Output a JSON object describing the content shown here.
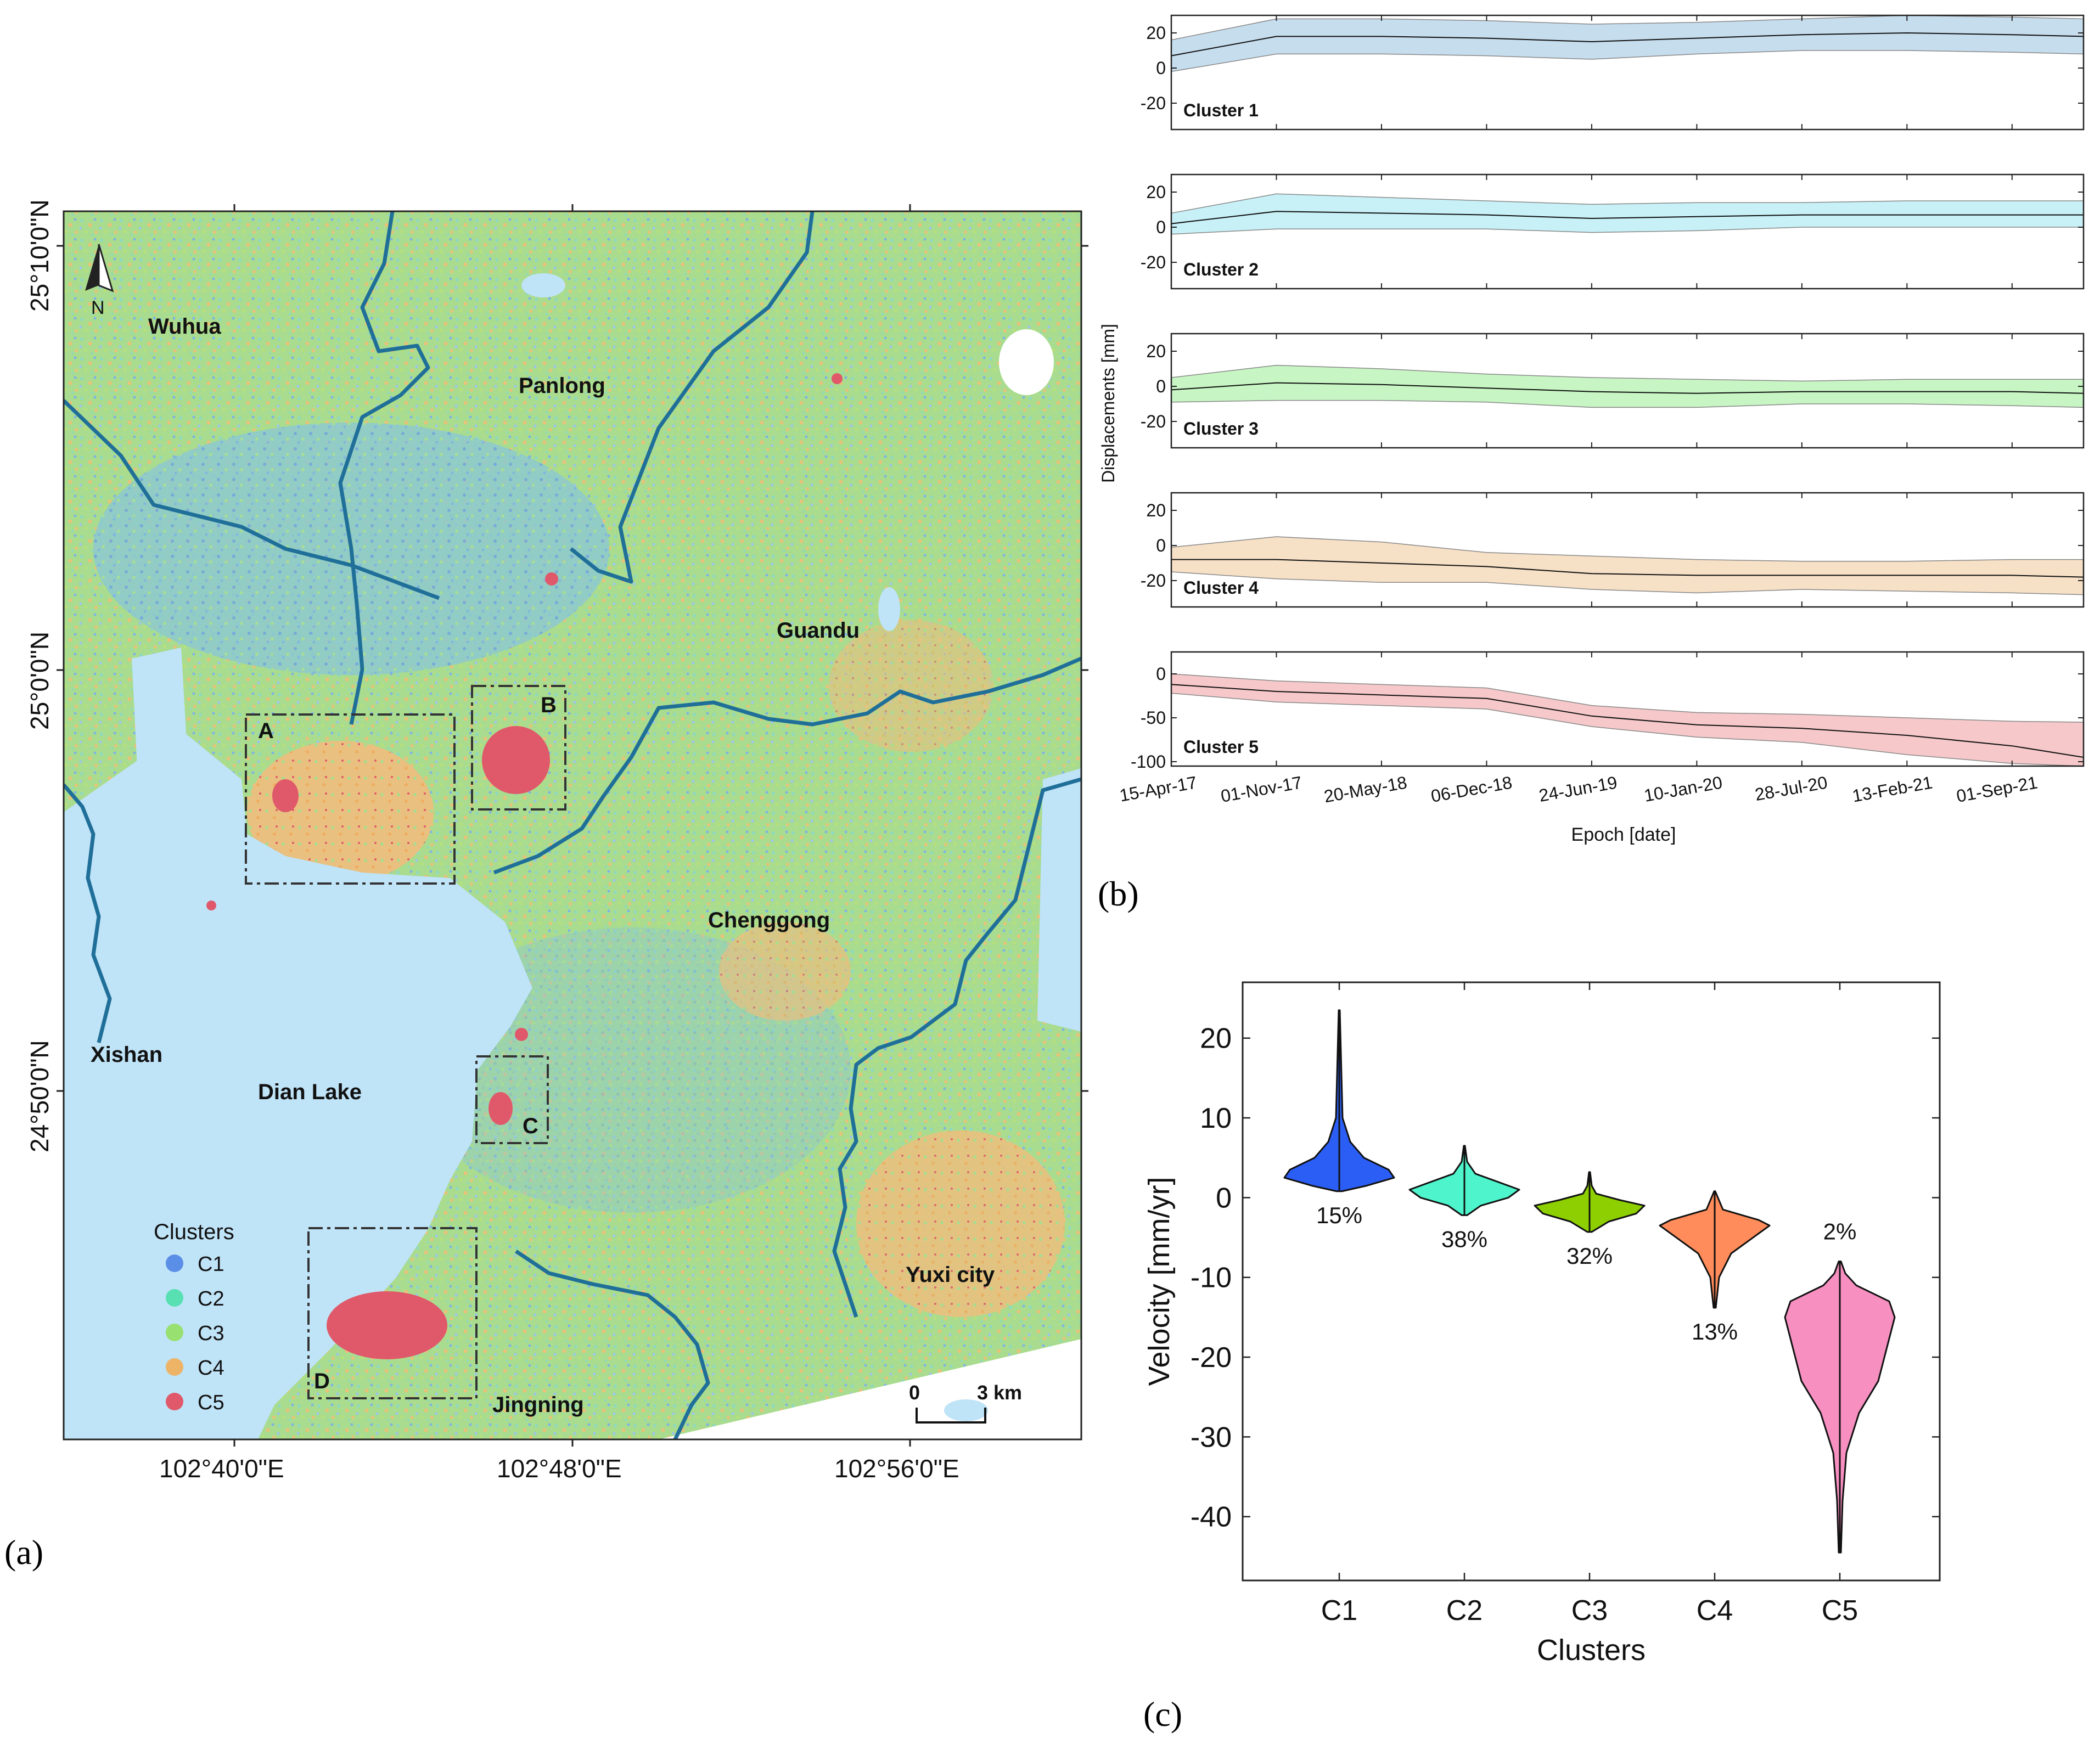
{
  "panels": {
    "a": "(a)",
    "b": "(b)",
    "c": "(c)"
  },
  "map": {
    "places": [
      {
        "id": "wuhua",
        "name": "Wuhua"
      },
      {
        "id": "panlong",
        "name": "Panlong"
      },
      {
        "id": "guandu",
        "name": "Guandu"
      },
      {
        "id": "chenggong",
        "name": "Chenggong"
      },
      {
        "id": "xishan",
        "name": "Xishan"
      },
      {
        "id": "dianlake",
        "name": "Dian Lake"
      },
      {
        "id": "yuxi",
        "name": "Yuxi city"
      },
      {
        "id": "jingning",
        "name": "Jingning"
      }
    ],
    "boxes": [
      "A",
      "B",
      "C",
      "D"
    ],
    "lat_labels": [
      "25°10'0\"N",
      "25°0'0\"N",
      "24°50'0\"N"
    ],
    "lon_labels": [
      "102°40'0\"E",
      "102°48'0\"E",
      "102°56'0\"E"
    ],
    "north_label": "N",
    "scalebar": {
      "start": "0",
      "end": "3 km"
    },
    "legend": {
      "title": "Clusters",
      "items": [
        {
          "label": "C1",
          "color": "#5b8ee6"
        },
        {
          "label": "C2",
          "color": "#58e0b3"
        },
        {
          "label": "C3",
          "color": "#98e070"
        },
        {
          "label": "C4",
          "color": "#edb467"
        },
        {
          "label": "C5",
          "color": "#e0596a"
        }
      ]
    },
    "colors": {
      "lake": "#bfe3f7",
      "river": "#1f6f99",
      "land": "#a9dc8e"
    }
  },
  "chart_data": [
    {
      "id": "timeseries",
      "type": "area",
      "xlabel": "Epoch [date]",
      "ylabel": "Displacements [mm]",
      "x_ticks": [
        "15-Apr-17",
        "01-Nov-17",
        "20-May-18",
        "06-Dec-18",
        "24-Jun-19",
        "10-Jan-20",
        "28-Jul-20",
        "13-Feb-21",
        "01-Sep-21"
      ],
      "x": [
        "2017-04-15",
        "2017-11-01",
        "2018-05-20",
        "2018-12-06",
        "2019-06-24",
        "2020-01-10",
        "2020-07-28",
        "2021-02-13",
        "2021-09-01",
        "2022-01-15"
      ],
      "series": [
        {
          "name": "Cluster 1",
          "color": "#c6ddee",
          "ylim": [
            -35,
            30
          ],
          "yticks": [
            20,
            0,
            -20
          ],
          "mean": [
            7,
            18,
            18,
            17,
            15,
            17,
            19,
            20,
            19,
            18
          ],
          "upper": [
            16,
            28,
            28,
            27,
            25,
            26,
            28,
            30,
            29,
            28
          ],
          "lower": [
            -2,
            8,
            8,
            7,
            5,
            8,
            10,
            10,
            9,
            8
          ]
        },
        {
          "name": "Cluster 2",
          "color": "#c7f1f7",
          "ylim": [
            -35,
            30
          ],
          "yticks": [
            20,
            0,
            -20
          ],
          "mean": [
            2,
            9,
            8,
            7,
            5,
            6,
            7,
            7,
            7,
            7
          ],
          "upper": [
            8,
            19,
            17,
            15,
            13,
            14,
            14,
            15,
            15,
            15
          ],
          "lower": [
            -4,
            -1,
            -1,
            -1,
            -3,
            -2,
            0,
            0,
            0,
            0
          ]
        },
        {
          "name": "Cluster 3",
          "color": "#c7f5c3",
          "ylim": [
            -35,
            30
          ],
          "yticks": [
            20,
            0,
            -20
          ],
          "mean": [
            -2,
            2,
            1,
            -1,
            -3,
            -4,
            -3,
            -3,
            -3,
            -4
          ],
          "upper": [
            5,
            12,
            10,
            7,
            5,
            4,
            3,
            4,
            4,
            4
          ],
          "lower": [
            -9,
            -8,
            -8,
            -9,
            -12,
            -12,
            -10,
            -10,
            -11,
            -12
          ]
        },
        {
          "name": "Cluster 4",
          "color": "#f6e0c6",
          "ylim": [
            -35,
            30
          ],
          "yticks": [
            20,
            0,
            -20
          ],
          "mean": [
            -8,
            -8,
            -10,
            -12,
            -16,
            -17,
            -17,
            -17,
            -17,
            -18
          ],
          "upper": [
            -1,
            5,
            2,
            -4,
            -6,
            -8,
            -9,
            -9,
            -8,
            -8
          ],
          "lower": [
            -15,
            -19,
            -21,
            -21,
            -25,
            -27,
            -25,
            -26,
            -27,
            -28
          ]
        },
        {
          "name": "Cluster 5",
          "color": "#f6c8c9",
          "ylim": [
            -105,
            25
          ],
          "yticks": [
            0,
            -50,
            -100
          ],
          "mean": [
            -12,
            -20,
            -24,
            -28,
            -48,
            -58,
            -62,
            -70,
            -82,
            -95
          ],
          "upper": [
            0,
            -8,
            -12,
            -16,
            -36,
            -44,
            -46,
            -50,
            -54,
            -55
          ],
          "lower": [
            -22,
            -32,
            -36,
            -40,
            -60,
            -72,
            -78,
            -92,
            -102,
            -105
          ]
        }
      ]
    },
    {
      "id": "violin",
      "type": "violin",
      "title": "",
      "xlabel": "Clusters",
      "ylabel": "Velocity [mm/yr]",
      "categories": [
        "C1",
        "C2",
        "C3",
        "C4",
        "C5"
      ],
      "ylim": [
        -48,
        27
      ],
      "yticks": [
        20,
        10,
        0,
        -10,
        -20,
        -30,
        -40
      ],
      "percent_labels": [
        "15%",
        "38%",
        "32%",
        "13%",
        "2%"
      ],
      "series": [
        {
          "name": "C1",
          "color": "#2b5ef5",
          "min": 0.8,
          "max": 23.5,
          "width_profile": [
            [
              0.8,
              0.05
            ],
            [
              1.5,
              0.5
            ],
            [
              2.5,
              1
            ],
            [
              3.5,
              0.9
            ],
            [
              5,
              0.45
            ],
            [
              7,
              0.2
            ],
            [
              10,
              0.06
            ],
            [
              23.5,
              0.01
            ]
          ]
        },
        {
          "name": "C2",
          "color": "#4ef5cc",
          "min": -2.2,
          "max": 6.5,
          "width_profile": [
            [
              -2.2,
              0.05
            ],
            [
              -1,
              0.3
            ],
            [
              0,
              0.8
            ],
            [
              1,
              1
            ],
            [
              2,
              0.6
            ],
            [
              3,
              0.2
            ],
            [
              4.5,
              0.05
            ],
            [
              6.5,
              0.01
            ]
          ]
        },
        {
          "name": "C3",
          "color": "#8dcf00",
          "min": -4.3,
          "max": 3.2,
          "width_profile": [
            [
              -4.3,
              0.04
            ],
            [
              -3,
              0.35
            ],
            [
              -2,
              0.85
            ],
            [
              -1,
              1
            ],
            [
              -0.3,
              0.55
            ],
            [
              0.5,
              0.12
            ],
            [
              1.5,
              0.04
            ],
            [
              3.2,
              0.01
            ]
          ]
        },
        {
          "name": "C4",
          "color": "#ff8c5a",
          "min": -13.8,
          "max": 0.8,
          "width_profile": [
            [
              -13.8,
              0.02
            ],
            [
              -10,
              0.08
            ],
            [
              -7,
              0.3
            ],
            [
              -5,
              0.7
            ],
            [
              -3.5,
              1
            ],
            [
              -2.8,
              0.8
            ],
            [
              -1.5,
              0.15
            ],
            [
              0.8,
              0.01
            ]
          ]
        },
        {
          "name": "C5",
          "color": "#f78fc1",
          "min": -44.5,
          "max": -8,
          "width_profile": [
            [
              -44.5,
              0.02
            ],
            [
              -38,
              0.05
            ],
            [
              -32,
              0.12
            ],
            [
              -27,
              0.35
            ],
            [
              -23,
              0.7
            ],
            [
              -19,
              0.85
            ],
            [
              -15,
              1
            ],
            [
              -13,
              0.9
            ],
            [
              -11,
              0.3
            ],
            [
              -9.5,
              0.1
            ],
            [
              -8,
              0.02
            ]
          ]
        }
      ]
    }
  ]
}
